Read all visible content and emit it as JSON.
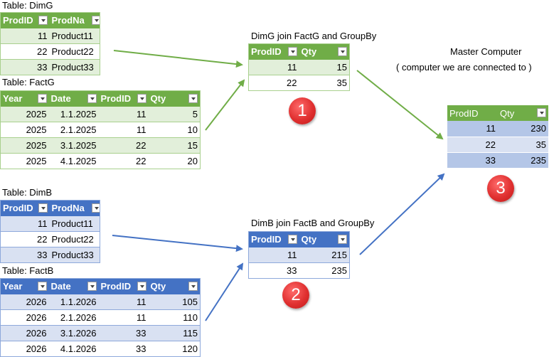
{
  "dimg": {
    "caption": "Table: DimG",
    "headers": [
      "ProdID",
      "ProdNa"
    ],
    "rows": [
      [
        "11",
        "Product11"
      ],
      [
        "22",
        "Product22"
      ],
      [
        "33",
        "Product33"
      ]
    ]
  },
  "factg": {
    "caption": "Table: FactG",
    "headers": [
      "Year",
      "Date",
      "ProdID",
      "Qty"
    ],
    "rows": [
      [
        "2025",
        "1.1.2025",
        "11",
        "5"
      ],
      [
        "2025",
        "2.1.2025",
        "11",
        "10"
      ],
      [
        "2025",
        "3.1.2025",
        "22",
        "15"
      ],
      [
        "2025",
        "4.1.2025",
        "22",
        "20"
      ]
    ]
  },
  "dimb": {
    "caption": "Table: DimB",
    "headers": [
      "ProdID",
      "ProdNa"
    ],
    "rows": [
      [
        "11",
        "Product11"
      ],
      [
        "22",
        "Product22"
      ],
      [
        "33",
        "Product33"
      ]
    ]
  },
  "factb": {
    "caption": "Table: FactB",
    "headers": [
      "Year",
      "Date",
      "ProdID",
      "Qty"
    ],
    "rows": [
      [
        "2026",
        "1.1.2026",
        "11",
        "105"
      ],
      [
        "2026",
        "2.1.2026",
        "11",
        "110"
      ],
      [
        "2026",
        "3.1.2026",
        "33",
        "115"
      ],
      [
        "2026",
        "4.1.2026",
        "33",
        "120"
      ]
    ]
  },
  "join_g": {
    "caption": "DimG join FactG and GroupBy",
    "headers": [
      "ProdID",
      "Qty"
    ],
    "rows": [
      [
        "11",
        "15"
      ],
      [
        "22",
        "35"
      ]
    ],
    "badge": "1"
  },
  "join_b": {
    "caption": "DimB join FactB and GroupBy",
    "headers": [
      "ProdID",
      "Qty"
    ],
    "rows": [
      [
        "11",
        "215"
      ],
      [
        "33",
        "235"
      ]
    ],
    "badge": "2"
  },
  "master": {
    "title": "Master Computer",
    "subtitle": "( computer we are connected to )",
    "headers": [
      "ProdID",
      "Qty"
    ],
    "rows": [
      [
        "11",
        "230"
      ],
      [
        "22",
        "35"
      ],
      [
        "33",
        "235"
      ]
    ],
    "badge": "3"
  },
  "colors": {
    "green_header": "#70ad47",
    "green_band": "#e2efda",
    "blue_header": "#4472c4",
    "blue_band": "#d9e1f2",
    "green_arrow": "#70ad47",
    "blue_arrow": "#4472c4",
    "badge": "#e03030"
  }
}
